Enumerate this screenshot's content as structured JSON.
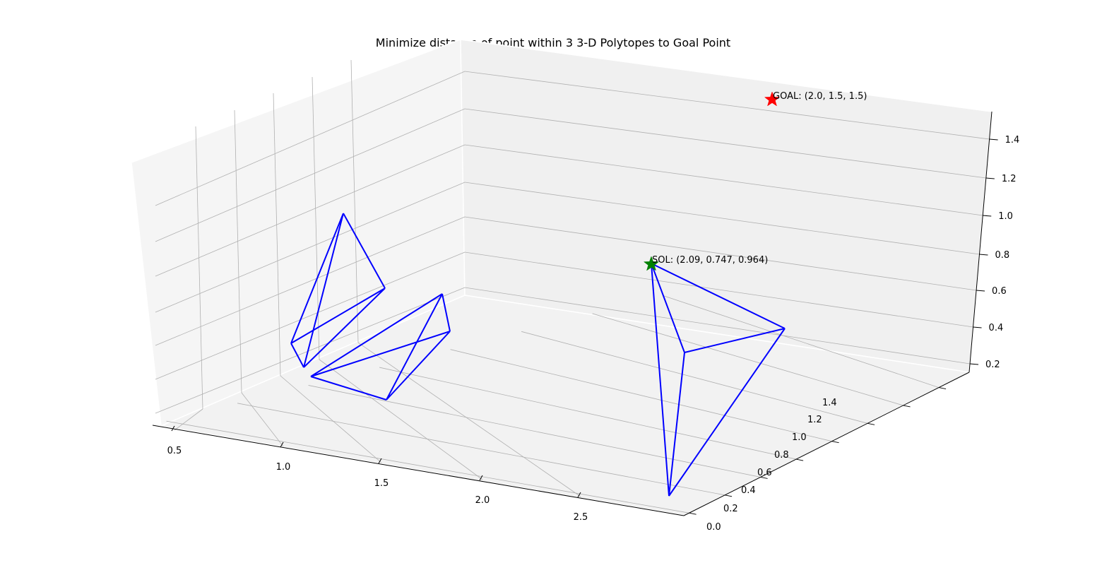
{
  "chart_data": {
    "type": "3d-wireframe-polytopes",
    "title": "Minimize distance of point within 3 3-D Polytopes to Goal Point",
    "x_ticks": [
      "0.5",
      "1.0",
      "1.5",
      "2.0",
      "2.5"
    ],
    "y_ticks": [
      "0.0",
      "0.2",
      "0.4",
      "0.6",
      "0.8",
      "1.0",
      "1.2",
      "1.4"
    ],
    "z_ticks": [
      "0.2",
      "0.4",
      "0.6",
      "0.8",
      "1.0",
      "1.2",
      "1.4"
    ],
    "polytope_color": "#0000ff",
    "goal": {
      "point": [
        2.0,
        1.5,
        1.5
      ],
      "label": "GOAL: (2.0, 1.5, 1.5)",
      "color": "#ff0000",
      "marker": "star"
    },
    "solution": {
      "point": [
        2.09,
        0.747,
        0.964
      ],
      "label": "SOL: (2.09, 0.747, 0.964)",
      "color": "#008000",
      "marker": "star"
    }
  }
}
